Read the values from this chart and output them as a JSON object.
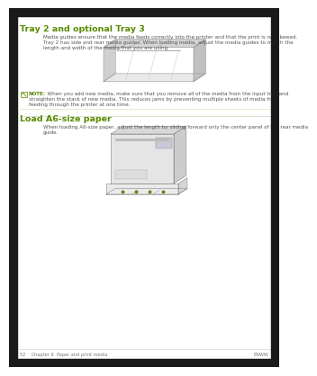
{
  "bg_color": "#ffffff",
  "top_bar_color": "#1a1a1a",
  "bottom_bar_color": "#1a1a1a",
  "left_bar_color": "#1a1a1a",
  "right_bar_color": "#1a1a1a",
  "header_color": "#5a8a00",
  "note_color": "#5a8a00",
  "text_color": "#555555",
  "light_text": "#777777",
  "title1": "Tray 2 and optional Tray 3",
  "body1_lines": [
    "Media guides ensure that the media feeds correctly into the printer and that the print is not skewed.",
    "Tray 2 has side and rear media guides. When loading media, adjust the media guides to match the",
    "length and width of the media that you are using."
  ],
  "note_label": "NOTE:",
  "note_lines": [
    "When you add new media, make sure that you remove all of the media from the input tray and",
    "straighten the stack of new media. This reduces jams by preventing multiple sheets of media from",
    "feeding through the printer at one time."
  ],
  "title2": "Load A6-size paper",
  "body2_lines": [
    "When loading A6-size paper, adjust the length by sliding forward only the center panel of the rear media",
    "guide."
  ],
  "footer_left": "52    Chapter 6  Paper and print media",
  "footer_right": "ENWW"
}
